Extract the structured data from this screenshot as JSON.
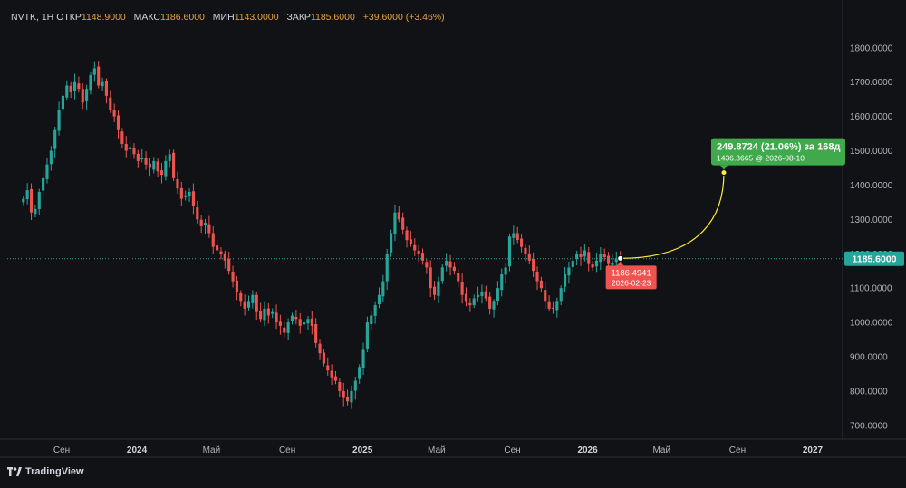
{
  "header": {
    "symbol": "NVTK, 1H",
    "open_label": "ОТКР",
    "open": "1148.9000",
    "high_label": "МАКС",
    "high": "1186.6000",
    "low_label": "МИН",
    "low": "1143.0000",
    "close_label": "ЗАКР",
    "close": "1185.6000",
    "change": "+39.6000 (+3.46%)"
  },
  "brand": "TradingView",
  "colors": {
    "up": "#26a69a",
    "down": "#ef5350",
    "background": "#111216",
    "projection": "#ffeb3b",
    "forecast_box": "#3fa94b",
    "price_line": "#26a69a"
  },
  "chart_data": {
    "type": "candlestick",
    "ylim": [
      660,
      1860
    ],
    "yticks": [
      "1800.0000",
      "1700.0000",
      "1600.0000",
      "1500.0000",
      "1400.0000",
      "1300.0000",
      "1200.0000",
      "1100.0000",
      "1000.0000",
      "900.0000",
      "800.0000",
      "700.0000"
    ],
    "yticks_values": [
      1800,
      1700,
      1600,
      1500,
      1400,
      1300,
      1200,
      1100,
      1000,
      900,
      800,
      700
    ],
    "xticks": [
      {
        "label": "Сен",
        "bold": false,
        "date": "2023-09-01"
      },
      {
        "label": "2024",
        "bold": true,
        "date": "2024-01-01"
      },
      {
        "label": "Май",
        "bold": false,
        "date": "2024-05-01"
      },
      {
        "label": "Сен",
        "bold": false,
        "date": "2024-09-01"
      },
      {
        "label": "2025",
        "bold": true,
        "date": "2025-01-01"
      },
      {
        "label": "Май",
        "bold": false,
        "date": "2025-05-01"
      },
      {
        "label": "Сен",
        "bold": false,
        "date": "2025-09-01"
      },
      {
        "label": "2026",
        "bold": true,
        "date": "2026-01-01"
      },
      {
        "label": "Май",
        "bold": false,
        "date": "2026-05-01"
      },
      {
        "label": "Сен",
        "bold": false,
        "date": "2026-09-01"
      },
      {
        "label": "2027",
        "bold": true,
        "date": "2027-01-01"
      }
    ],
    "last_price": 1185.6,
    "last_price_label": "1185.6000",
    "series_close": [
      1360,
      1385,
      1320,
      1330,
      1380,
      1420,
      1460,
      1500,
      1560,
      1620,
      1660,
      1690,
      1670,
      1700,
      1680,
      1640,
      1680,
      1720,
      1740,
      1690,
      1700,
      1660,
      1620,
      1600,
      1560,
      1520,
      1500,
      1510,
      1490,
      1470,
      1480,
      1460,
      1450,
      1470,
      1440,
      1430,
      1470,
      1490,
      1420,
      1390,
      1360,
      1370,
      1380,
      1340,
      1300,
      1280,
      1290,
      1260,
      1220,
      1210,
      1200,
      1180,
      1150,
      1120,
      1090,
      1060,
      1040,
      1060,
      1080,
      1030,
      1010,
      1040,
      1020,
      1030,
      1000,
      990,
      970,
      1000,
      1020,
      1010,
      990,
      1000,
      1010,
      990,
      940,
      910,
      880,
      860,
      840,
      830,
      800,
      780,
      770,
      800,
      830,
      870,
      920,
      1000,
      1020,
      1050,
      1080,
      1120,
      1200,
      1260,
      1320,
      1300,
      1270,
      1240,
      1230,
      1210,
      1200,
      1180,
      1160,
      1100,
      1080,
      1120,
      1160,
      1180,
      1160,
      1150,
      1120,
      1080,
      1060,
      1050,
      1070,
      1080,
      1090,
      1070,
      1040,
      1060,
      1100,
      1140,
      1160,
      1250,
      1260,
      1240,
      1220,
      1200,
      1180,
      1150,
      1120,
      1100,
      1060,
      1040,
      1040,
      1060,
      1100,
      1140,
      1160,
      1180,
      1200,
      1190,
      1210,
      1170,
      1160,
      1180,
      1200,
      1190,
      1170,
      1175,
      1186.5,
      1185.6
    ],
    "series_start_date": "2023-07-01",
    "series_end_date": "2026-02-23",
    "projection": {
      "from_price": 1186.4941,
      "from_date": "2026-02-23",
      "from_label": "1186.4941",
      "from_date_label": "2026-02-23",
      "to_price": 1436.3665,
      "to_date": "2026-08-10",
      "headline": "249.8724 (21.06%) за 168д",
      "detail": "1436.3665 @ 2026-08-10"
    }
  }
}
